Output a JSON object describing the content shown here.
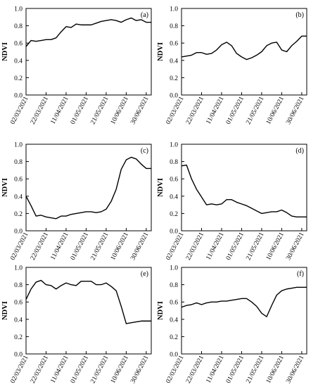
{
  "chart_data": [
    {
      "type": "line",
      "panel_label": "(a)",
      "ylabel": "NDVI",
      "ylim": [
        0,
        1.0
      ],
      "yticks": [
        "0.0",
        "0.2",
        "0.4",
        "0.6",
        "0.8",
        "1.0"
      ],
      "xticks": [
        "02/03/2021",
        "22/03/2021",
        "11/04/2021",
        "01/05/2021",
        "21/05/2021",
        "10/06/2021",
        "30/06/2021"
      ],
      "x": [
        "02/03/2021",
        "07/03/2021",
        "12/03/2021",
        "17/03/2021",
        "22/03/2021",
        "27/03/2021",
        "01/04/2021",
        "06/04/2021",
        "11/04/2021",
        "16/04/2021",
        "21/04/2021",
        "26/04/2021",
        "01/05/2021",
        "06/05/2021",
        "11/05/2021",
        "16/05/2021",
        "21/05/2021",
        "26/05/2021",
        "31/05/2021",
        "05/06/2021",
        "10/06/2021",
        "15/06/2021",
        "20/06/2021",
        "25/06/2021",
        "30/06/2021",
        "05/07/2021"
      ],
      "values": [
        0.56,
        0.63,
        0.62,
        0.63,
        0.64,
        0.64,
        0.66,
        0.73,
        0.79,
        0.78,
        0.82,
        0.81,
        0.81,
        0.81,
        0.83,
        0.85,
        0.86,
        0.87,
        0.86,
        0.84,
        0.87,
        0.89,
        0.86,
        0.87,
        0.84,
        0.84
      ]
    },
    {
      "type": "line",
      "panel_label": "(b)",
      "ylabel": "NDVI",
      "ylim": [
        0,
        1.0
      ],
      "yticks": [
        "0.0",
        "0.2",
        "0.4",
        "0.6",
        "0.8",
        "1.0"
      ],
      "xticks": [
        "02/03/2021",
        "22/03/2021",
        "11/04/2021",
        "01/05/2021",
        "21/05/2021",
        "10/06/2021",
        "30/06/2021"
      ],
      "x": [
        "02/03/2021",
        "07/03/2021",
        "12/03/2021",
        "17/03/2021",
        "22/03/2021",
        "27/03/2021",
        "01/04/2021",
        "06/04/2021",
        "11/04/2021",
        "16/04/2021",
        "21/04/2021",
        "26/04/2021",
        "01/05/2021",
        "06/05/2021",
        "11/05/2021",
        "16/05/2021",
        "21/05/2021",
        "26/05/2021",
        "31/05/2021",
        "05/06/2021",
        "10/06/2021",
        "15/06/2021",
        "20/06/2021",
        "25/06/2021",
        "30/06/2021",
        "05/07/2021"
      ],
      "values": [
        0.44,
        0.45,
        0.46,
        0.49,
        0.49,
        0.47,
        0.48,
        0.52,
        0.58,
        0.61,
        0.57,
        0.48,
        0.44,
        0.41,
        0.43,
        0.46,
        0.5,
        0.57,
        0.6,
        0.61,
        0.52,
        0.5,
        0.57,
        0.62,
        0.68,
        0.68
      ]
    },
    {
      "type": "line",
      "panel_label": "(c)",
      "ylabel": "NDVI",
      "ylim": [
        0,
        1.0
      ],
      "yticks": [
        "0.0",
        "0.2",
        "0.4",
        "0.6",
        "0.8",
        "1.0"
      ],
      "xticks": [
        "02/03/2021",
        "22/03/2021",
        "11/04/2021",
        "01/05/2021",
        "21/05/2021",
        "10/06/2021",
        "30/06/2021"
      ],
      "x": [
        "02/03/2021",
        "07/03/2021",
        "12/03/2021",
        "17/03/2021",
        "22/03/2021",
        "27/03/2021",
        "01/04/2021",
        "06/04/2021",
        "11/04/2021",
        "16/04/2021",
        "21/04/2021",
        "26/04/2021",
        "01/05/2021",
        "06/05/2021",
        "11/05/2021",
        "16/05/2021",
        "21/05/2021",
        "26/05/2021",
        "31/05/2021",
        "05/06/2021",
        "10/06/2021",
        "15/06/2021",
        "20/06/2021",
        "25/06/2021",
        "30/06/2021",
        "05/07/2021"
      ],
      "values": [
        0.4,
        0.29,
        0.17,
        0.18,
        0.16,
        0.15,
        0.14,
        0.17,
        0.17,
        0.19,
        0.2,
        0.21,
        0.22,
        0.22,
        0.21,
        0.22,
        0.25,
        0.34,
        0.48,
        0.71,
        0.82,
        0.85,
        0.83,
        0.77,
        0.72,
        0.72
      ]
    },
    {
      "type": "line",
      "panel_label": "(d)",
      "ylabel": "NDVI",
      "ylim": [
        0,
        1.0
      ],
      "yticks": [
        "0.0",
        "0.2",
        "0.4",
        "0.6",
        "0.8",
        "1.0"
      ],
      "xticks": [
        "02/03/2021",
        "22/03/2021",
        "11/04/2021",
        "01/05/2021",
        "21/05/2021",
        "10/06/2021",
        "30/06/2021"
      ],
      "x": [
        "02/03/2021",
        "07/03/2021",
        "12/03/2021",
        "17/03/2021",
        "22/03/2021",
        "27/03/2021",
        "01/04/2021",
        "06/04/2021",
        "11/04/2021",
        "16/04/2021",
        "21/04/2021",
        "26/04/2021",
        "01/05/2021",
        "06/05/2021",
        "11/05/2021",
        "16/05/2021",
        "21/05/2021",
        "26/05/2021",
        "31/05/2021",
        "05/06/2021",
        "10/06/2021",
        "15/06/2021",
        "20/06/2021",
        "25/06/2021",
        "30/06/2021",
        "05/07/2021"
      ],
      "values": [
        0.75,
        0.76,
        0.6,
        0.48,
        0.39,
        0.3,
        0.31,
        0.3,
        0.31,
        0.36,
        0.36,
        0.33,
        0.31,
        0.29,
        0.26,
        0.23,
        0.2,
        0.21,
        0.22,
        0.22,
        0.24,
        0.21,
        0.17,
        0.16,
        0.16,
        0.16
      ]
    },
    {
      "type": "line",
      "panel_label": "(e)",
      "ylabel": "NDVI",
      "ylim": [
        0,
        1.0
      ],
      "yticks": [
        "0.0",
        "0.2",
        "0.4",
        "0.6",
        "0.8",
        "1.0"
      ],
      "xticks": [
        "02/03/2021",
        "22/03/2021",
        "11/04/2021",
        "01/05/2021",
        "21/05/2021",
        "10/06/2021",
        "30/06/2021"
      ],
      "x": [
        "02/03/2021",
        "07/03/2021",
        "12/03/2021",
        "17/03/2021",
        "22/03/2021",
        "27/03/2021",
        "01/04/2021",
        "06/04/2021",
        "11/04/2021",
        "16/04/2021",
        "21/04/2021",
        "26/04/2021",
        "01/05/2021",
        "06/05/2021",
        "11/05/2021",
        "16/05/2021",
        "21/05/2021",
        "26/05/2021",
        "31/05/2021",
        "05/06/2021",
        "10/06/2021",
        "15/06/2021",
        "20/06/2021",
        "25/06/2021",
        "30/06/2021",
        "05/07/2021"
      ],
      "values": [
        0.63,
        0.75,
        0.83,
        0.85,
        0.8,
        0.79,
        0.75,
        0.79,
        0.82,
        0.8,
        0.79,
        0.84,
        0.84,
        0.84,
        0.8,
        0.8,
        0.82,
        0.78,
        0.73,
        0.55,
        0.35,
        0.36,
        0.37,
        0.38,
        0.38,
        0.38
      ]
    },
    {
      "type": "line",
      "panel_label": "(f)",
      "ylabel": "NDVI",
      "ylim": [
        0,
        1.0
      ],
      "yticks": [
        "0.0",
        "0.2",
        "0.4",
        "0.6",
        "0.8",
        "1.0"
      ],
      "xticks": [
        "02/03/2021",
        "22/03/2021",
        "11/04/2021",
        "01/05/2021",
        "21/05/2021",
        "10/06/2021",
        "30/06/2021"
      ],
      "x": [
        "02/03/2021",
        "07/03/2021",
        "12/03/2021",
        "17/03/2021",
        "22/03/2021",
        "27/03/2021",
        "01/04/2021",
        "06/04/2021",
        "11/04/2021",
        "16/04/2021",
        "21/04/2021",
        "26/04/2021",
        "01/05/2021",
        "06/05/2021",
        "11/05/2021",
        "16/05/2021",
        "21/05/2021",
        "26/05/2021",
        "31/05/2021",
        "05/06/2021",
        "10/06/2021",
        "15/06/2021",
        "20/06/2021",
        "25/06/2021",
        "30/06/2021",
        "05/07/2021"
      ],
      "values": [
        0.54,
        0.56,
        0.57,
        0.59,
        0.57,
        0.59,
        0.6,
        0.6,
        0.61,
        0.61,
        0.62,
        0.63,
        0.64,
        0.64,
        0.6,
        0.55,
        0.47,
        0.43,
        0.56,
        0.68,
        0.73,
        0.75,
        0.76,
        0.77,
        0.77,
        0.77
      ]
    }
  ]
}
